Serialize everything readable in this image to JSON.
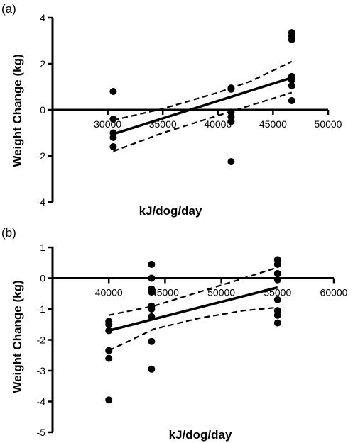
{
  "chart_data": [
    {
      "type": "scatter",
      "panel_label": "(a)",
      "xlabel": "kJ/dog/day",
      "ylabel": "Weight Change (kg)",
      "xlim": [
        25000,
        50000
      ],
      "ylim": [
        -4,
        4
      ],
      "x_ticks": [
        30000,
        35000,
        40000,
        45000,
        50000
      ],
      "x_tick_labels": [
        "30000",
        "35000",
        "40000",
        "45000",
        "50000"
      ],
      "y_ticks": [
        -4,
        -2,
        0,
        2,
        4
      ],
      "y_tick_labels": [
        "-4",
        "-2",
        "0",
        "2",
        "4"
      ],
      "points": [
        {
          "x": 30500,
          "y": 0.8
        },
        {
          "x": 30500,
          "y": -0.4
        },
        {
          "x": 30500,
          "y": -1.0
        },
        {
          "x": 30500,
          "y": -1.2
        },
        {
          "x": 30500,
          "y": -1.6
        },
        {
          "x": 41200,
          "y": 0.95
        },
        {
          "x": 41200,
          "y": 0.9
        },
        {
          "x": 41200,
          "y": -0.1
        },
        {
          "x": 41200,
          "y": -0.3
        },
        {
          "x": 41200,
          "y": -0.5
        },
        {
          "x": 41200,
          "y": -2.25
        },
        {
          "x": 46700,
          "y": 3.35
        },
        {
          "x": 46700,
          "y": 3.2
        },
        {
          "x": 46700,
          "y": 3.05
        },
        {
          "x": 46700,
          "y": 1.45
        },
        {
          "x": 46700,
          "y": 1.3
        },
        {
          "x": 46700,
          "y": 1.05
        },
        {
          "x": 46700,
          "y": 0.4
        }
      ],
      "fit": {
        "x": [
          30500,
          46700
        ],
        "y": [
          -1.05,
          1.4
        ]
      },
      "ci_upper": {
        "x": [
          30500,
          35000,
          40000,
          43000,
          46700
        ],
        "y": [
          -0.45,
          0.05,
          0.75,
          1.25,
          2.1
        ]
      },
      "ci_lower": {
        "x": [
          30500,
          35000,
          40000,
          43000,
          46700
        ],
        "y": [
          -1.8,
          -1.0,
          -0.25,
          0.2,
          0.75
        ]
      }
    },
    {
      "type": "scatter",
      "panel_label": "(b)",
      "xlabel": "kJ/dog/day",
      "ylabel": "Weight Change (kg)",
      "xlim": [
        35000,
        60000
      ],
      "ylim": [
        -5,
        1
      ],
      "x_ticks": [
        40000,
        45000,
        50000,
        55000,
        60000
      ],
      "x_tick_labels": [
        "40000",
        "45000",
        "50000",
        "55000",
        "60000"
      ],
      "y_ticks": [
        -5,
        -4,
        -3,
        -2,
        -1,
        0,
        1
      ],
      "y_tick_labels": [
        "-5",
        "-4",
        "-3",
        "-2",
        "-1",
        "0",
        "1"
      ],
      "points": [
        {
          "x": 40000,
          "y": -1.4
        },
        {
          "x": 40000,
          "y": -1.5
        },
        {
          "x": 40000,
          "y": -1.7
        },
        {
          "x": 40000,
          "y": -2.35
        },
        {
          "x": 40000,
          "y": -2.6
        },
        {
          "x": 40000,
          "y": -3.95
        },
        {
          "x": 43800,
          "y": 0.45
        },
        {
          "x": 43800,
          "y": 0.0
        },
        {
          "x": 43800,
          "y": -0.35
        },
        {
          "x": 43800,
          "y": -0.45
        },
        {
          "x": 43800,
          "y": -0.9
        },
        {
          "x": 43800,
          "y": -1.0
        },
        {
          "x": 43800,
          "y": -1.25
        },
        {
          "x": 43800,
          "y": -2.05
        },
        {
          "x": 43800,
          "y": -2.95
        },
        {
          "x": 55000,
          "y": 0.6
        },
        {
          "x": 55000,
          "y": 0.45
        },
        {
          "x": 55000,
          "y": 0.15
        },
        {
          "x": 55000,
          "y": -0.05
        },
        {
          "x": 55000,
          "y": -0.7
        },
        {
          "x": 55000,
          "y": -1.05
        },
        {
          "x": 55000,
          "y": -1.2
        },
        {
          "x": 55000,
          "y": -1.45
        }
      ],
      "fit": {
        "x": [
          40000,
          55000
        ],
        "y": [
          -1.7,
          -0.3
        ]
      },
      "ci_upper": {
        "x": [
          40000,
          44000,
          48000,
          52000,
          55000
        ],
        "y": [
          -1.2,
          -0.9,
          -0.45,
          0.0,
          0.35
        ]
      },
      "ci_lower": {
        "x": [
          40000,
          44000,
          48000,
          52000,
          55000
        ],
        "y": [
          -2.35,
          -1.65,
          -1.3,
          -1.05,
          -0.95
        ]
      }
    }
  ]
}
